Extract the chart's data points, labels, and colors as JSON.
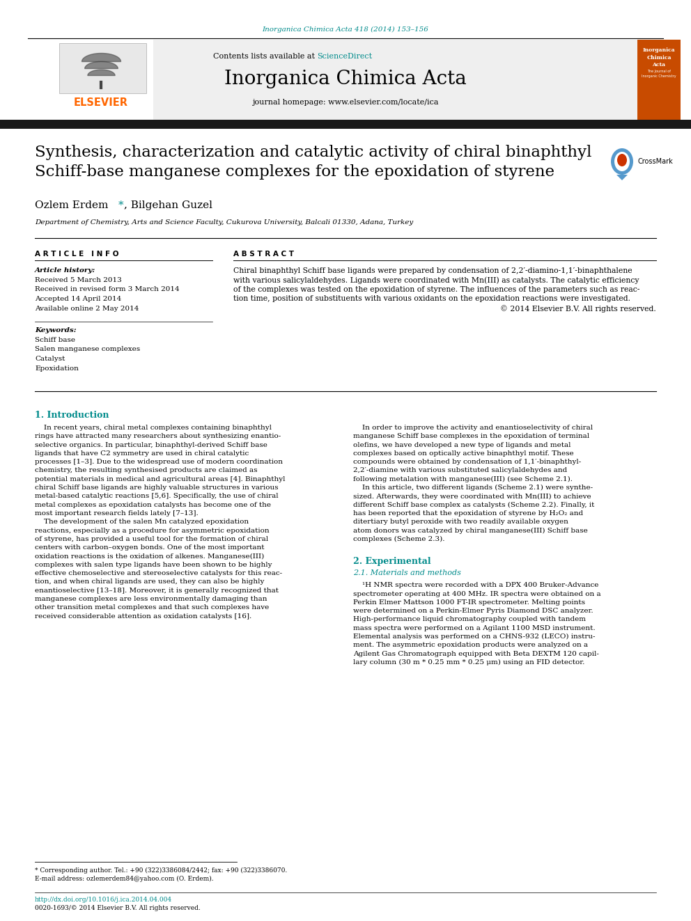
{
  "journal_ref": "Inorganica Chimica Acta 418 (2014) 153–156",
  "journal_ref_color": "#008B8B",
  "contents_text": "Contents lists available at ",
  "sciencedirect_text": "ScienceDirect",
  "sciencedirect_color": "#008B8B",
  "journal_name": "Inorganica Chimica Acta",
  "journal_homepage": "journal homepage: www.elsevier.com/locate/ica",
  "elsevier_color": "#FF6600",
  "elsevier_text": "ELSEVIER",
  "title": "Synthesis, characterization and catalytic activity of chiral binaphthyl\nSchiff-base manganese complexes for the epoxidation of styrene",
  "crossmark_text": "CrossMark",
  "authors_part1": "Ozlem Erdem ",
  "authors_star": "*",
  "authors_part2": ", Bilgehan Guzel",
  "affiliation": "Department of Chemistry, Arts and Science Faculty, Cukurova University, Balcali 01330, Adana, Turkey",
  "article_info_header": "A R T I C L E   I N F O",
  "abstract_header": "A B S T R A C T",
  "article_history_label": "Article history:",
  "received1": "Received 5 March 2013",
  "received2": "Received in revised form 3 March 2014",
  "accepted": "Accepted 14 April 2014",
  "available": "Available online 2 May 2014",
  "keywords_label": "Keywords:",
  "keywords": [
    "Schiff base",
    "Salen manganese complexes",
    "Catalyst",
    "Epoxidation"
  ],
  "abstract_lines": [
    "Chiral binaphthyl Schiff base ligands were prepared by condensation of 2,2′-diamino-1,1′-binaphthalene",
    "with various salicylaldehydes. Ligands were coordinated with Mn(III) as catalysts. The catalytic efficiency",
    "of the complexes was tested on the epoxidation of styrene. The influences of the parameters such as reac-",
    "tion time, position of substituents with various oxidants on the epoxidation reactions were investigated.",
    "© 2014 Elsevier B.V. All rights reserved."
  ],
  "section1_header": "1. Introduction",
  "intro_left_lines": [
    "    In recent years, chiral metal complexes containing binaphthyl",
    "rings have attracted many researchers about synthesizing enantio-",
    "selective organics. In particular, binaphthyl-derived Schiff base",
    "ligands that have C2 symmetry are used in chiral catalytic",
    "processes [1–3]. Due to the widespread use of modern coordination",
    "chemistry, the resulting synthesised products are claimed as",
    "potential materials in medical and agricultural areas [4]. Binaphthyl",
    "chiral Schiff base ligands are highly valuable structures in various",
    "metal-based catalytic reactions [5,6]. Specifically, the use of chiral",
    "metal complexes as epoxidation catalysts has become one of the",
    "most important research fields lately [7–13].",
    "    The development of the salen Mn catalyzed epoxidation",
    "reactions, especially as a procedure for asymmetric epoxidation",
    "of styrene, has provided a useful tool for the formation of chiral",
    "centers with carbon–oxygen bonds. One of the most important",
    "oxidation reactions is the oxidation of alkenes. Manganese(III)",
    "complexes with salen type ligands have been shown to be highly",
    "effective chemoselective and stereoselective catalysts for this reac-",
    "tion, and when chiral ligands are used, they can also be highly",
    "enantioselective [13–18]. Moreover, it is generally recognized that",
    "manganese complexes are less environmentally damaging than",
    "other transition metal complexes and that such complexes have",
    "received considerable attention as oxidation catalysts [16]."
  ],
  "intro_right_lines": [
    "    In order to improve the activity and enantioselectivity of chiral",
    "manganese Schiff base complexes in the epoxidation of terminal",
    "olefins, we have developed a new type of ligands and metal",
    "complexes based on optically active binaphthyl motif. These",
    "compounds were obtained by condensation of 1,1′-binaphthyl-",
    "2,2′-diamine with various substituted salicylaldehydes and",
    "following metalation with manganese(III) (see Scheme 2.1).",
    "    In this article, two different ligands (Scheme 2.1) were synthe-",
    "sized. Afterwards, they were coordinated with Mn(III) to achieve",
    "different Schiff base complex as catalysts (Scheme 2.2). Finally, it",
    "has been reported that the epoxidation of styrene by H₂O₂ and",
    "ditertiary butyl peroxide with two readily available oxygen",
    "atom donors was catalyzed by chiral manganese(III) Schiff base",
    "complexes (Scheme 2.3)."
  ],
  "section2_header": "2. Experimental",
  "section21_header": "2.1. Materials and methods",
  "methods_lines": [
    "    ¹H NMR spectra were recorded with a DPX 400 Bruker-Advance",
    "spectrometer operating at 400 MHz. IR spectra were obtained on a",
    "Perkin Elmer Mattson 1000 FT-IR spectrometer. Melting points",
    "were determined on a Perkin-Elmer Pyris Diamond DSC analyzer.",
    "High-performance liquid chromatography coupled with tandem",
    "mass spectra were performed on a Agilant 1100 MSD instrument.",
    "Elemental analysis was performed on a CHNS-932 (LECO) instru-",
    "ment. The asymmetric epoxidation products were analyzed on a",
    "Agilent Gas Chromatograph equipped with Beta DEXTM 120 capil-",
    "lary column (30 m * 0.25 mm * 0.25 μm) using an FID detector."
  ],
  "footnote_corresponding": "* Corresponding author. Tel.: +90 (322)3386084/2442; fax: +90 (322)3386070.",
  "footnote_email": "E-mail address: ozlemerdem84@yahoo.com (O. Erdem).",
  "footnote_doi": "http://dx.doi.org/10.1016/j.ica.2014.04.004",
  "footnote_issn": "0020-1693/© 2014 Elsevier B.V. All rights reserved.",
  "bg_color": "#FFFFFF",
  "dark_bar_color": "#1A1A1A",
  "link_color": "#008B8B",
  "section_header_color": "#008B8B"
}
